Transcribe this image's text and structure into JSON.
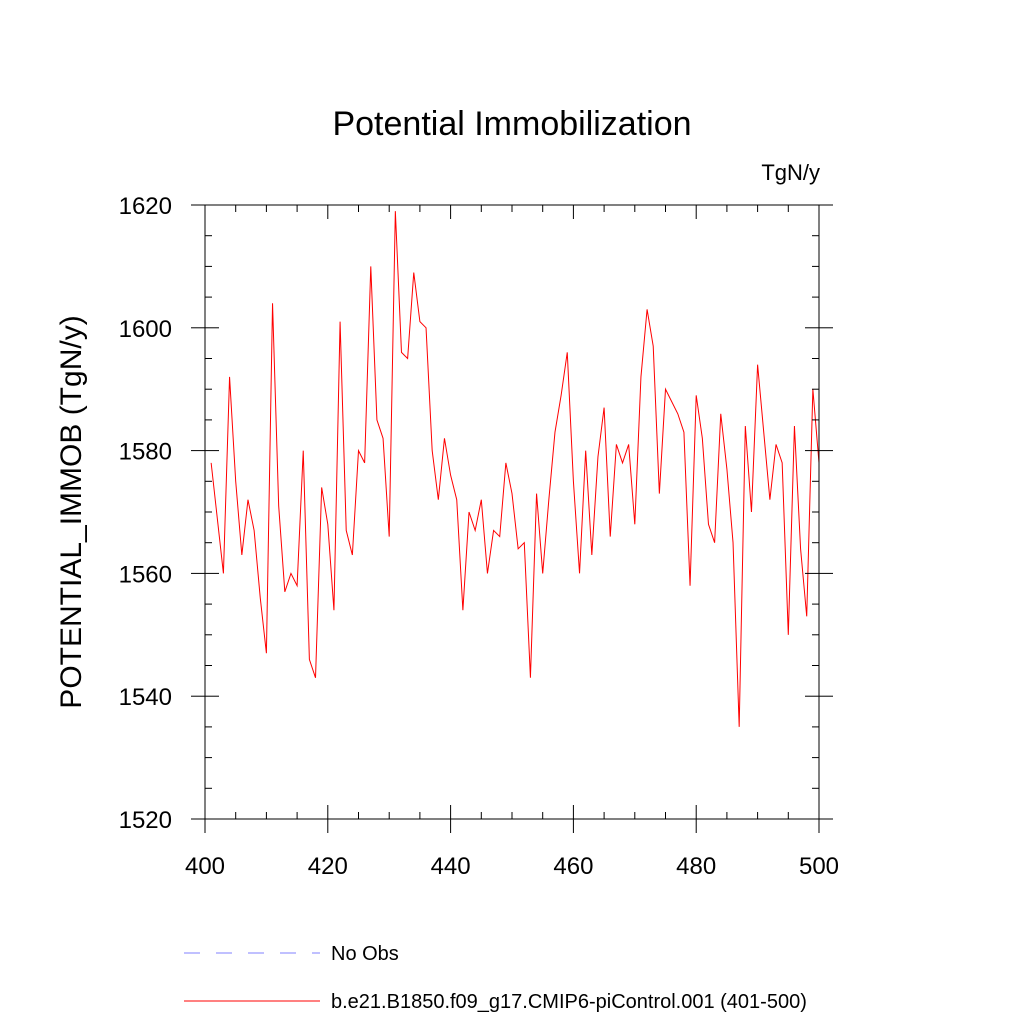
{
  "chart_data": {
    "type": "line",
    "title": "Potential Immobilization",
    "units_label": "TgN/y",
    "xlabel": "",
    "ylabel": "POTENTIAL_IMMOB  (TgN/y)",
    "xlim": [
      400,
      500
    ],
    "ylim": [
      1520,
      1620
    ],
    "xticks": [
      400,
      420,
      440,
      460,
      480,
      500
    ],
    "yticks": [
      1520,
      1540,
      1560,
      1580,
      1600,
      1620
    ],
    "x_start": 401,
    "series": [
      {
        "name": "b.e21.B1850.f09_g17.CMIP6-piControl.001 (401-500)",
        "color": "#ff0000",
        "style": "solid",
        "values": [
          1578,
          1569,
          1560,
          1592,
          1575,
          1563,
          1572,
          1567,
          1556,
          1547,
          1604,
          1571,
          1557,
          1560,
          1558,
          1580,
          1546,
          1543,
          1574,
          1568,
          1554,
          1601,
          1567,
          1563,
          1580,
          1578,
          1610,
          1585,
          1582,
          1566,
          1619,
          1596,
          1595,
          1609,
          1601,
          1600,
          1580,
          1572,
          1582,
          1576,
          1572,
          1554,
          1570,
          1567,
          1572,
          1560,
          1567,
          1566,
          1578,
          1573,
          1564,
          1565,
          1543,
          1573,
          1560,
          1572,
          1583,
          1589,
          1596,
          1575,
          1560,
          1580,
          1563,
          1579,
          1587,
          1566,
          1581,
          1578,
          1581,
          1568,
          1592,
          1603,
          1597,
          1573,
          1590,
          1588,
          1586,
          1583,
          1558,
          1589,
          1582,
          1568,
          1565,
          1586,
          1577,
          1565,
          1535,
          1584,
          1570,
          1594,
          1583,
          1572,
          1581,
          1578,
          1550,
          1584,
          1564,
          1553,
          1590,
          1578
        ]
      },
      {
        "name": "No Obs",
        "color": "#8080ff",
        "style": "dashed",
        "values": []
      }
    ],
    "legend_position": "bottom"
  }
}
